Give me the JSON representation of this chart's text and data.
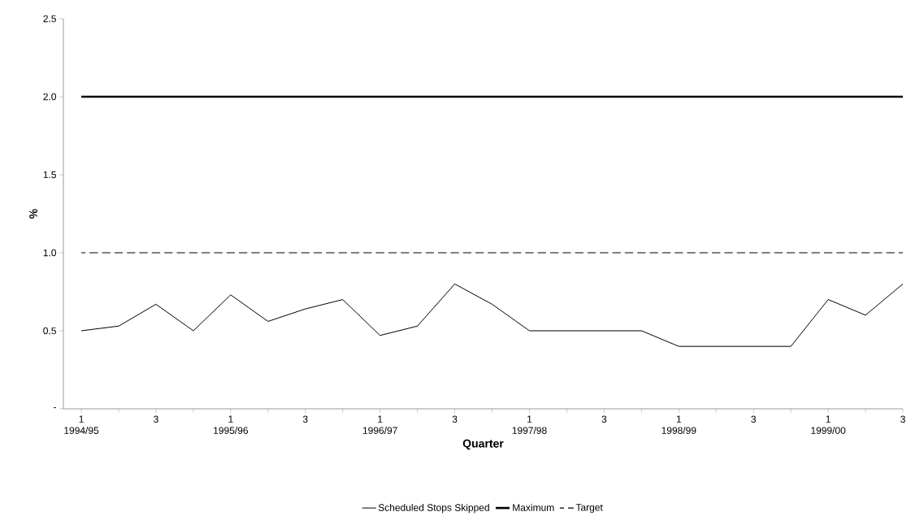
{
  "chart_data": {
    "type": "line",
    "xlabel": "Quarter",
    "ylabel": "%",
    "categories": [
      "1 1994/95",
      null,
      "3",
      null,
      "1 1995/96",
      null,
      "3",
      null,
      "1 1996/97",
      null,
      "3",
      null,
      "1 1997/98",
      null,
      "3",
      null,
      "1 1998/99",
      null,
      "3",
      null,
      "1 1999/00",
      null,
      "3"
    ],
    "series": [
      {
        "name": "Scheduled Stops Skipped",
        "color": "#000000",
        "line_style": "solid",
        "values": [
          0.5,
          0.53,
          0.67,
          0.5,
          0.73,
          0.56,
          0.64,
          0.7,
          0.47,
          0.53,
          0.8,
          0.67,
          0.5,
          0.5,
          0.5,
          0.5,
          0.4,
          0.4,
          0.4,
          0.4,
          0.7,
          0.6,
          0.8
        ]
      },
      {
        "name": "Maximum",
        "color": "#000000",
        "line_style": "solid",
        "values": [
          2,
          2,
          2,
          2,
          2,
          2,
          2,
          2,
          2,
          2,
          2,
          2,
          2,
          2,
          2,
          2,
          2,
          2,
          2,
          2,
          2,
          2,
          2
        ]
      },
      {
        "name": "Target",
        "color": "#000000",
        "line_style": "dashed",
        "values": [
          1,
          1,
          1,
          1,
          1,
          1,
          1,
          1,
          1,
          1,
          1,
          1,
          1,
          1,
          1,
          1,
          1,
          1,
          1,
          1,
          1,
          1,
          1
        ]
      }
    ],
    "ylim": [
      0,
      2.5
    ],
    "yticks": [
      {
        "value": 0,
        "label": "-"
      },
      {
        "value": 0.5,
        "label": "0.5"
      },
      {
        "value": 1,
        "label": "1.0"
      },
      {
        "value": 1.5,
        "label": "1.5"
      },
      {
        "value": 2,
        "label": "2.0"
      },
      {
        "value": 2.5,
        "label": "2.5"
      }
    ],
    "grid": false,
    "legend": "bottom",
    "marker": "none"
  }
}
